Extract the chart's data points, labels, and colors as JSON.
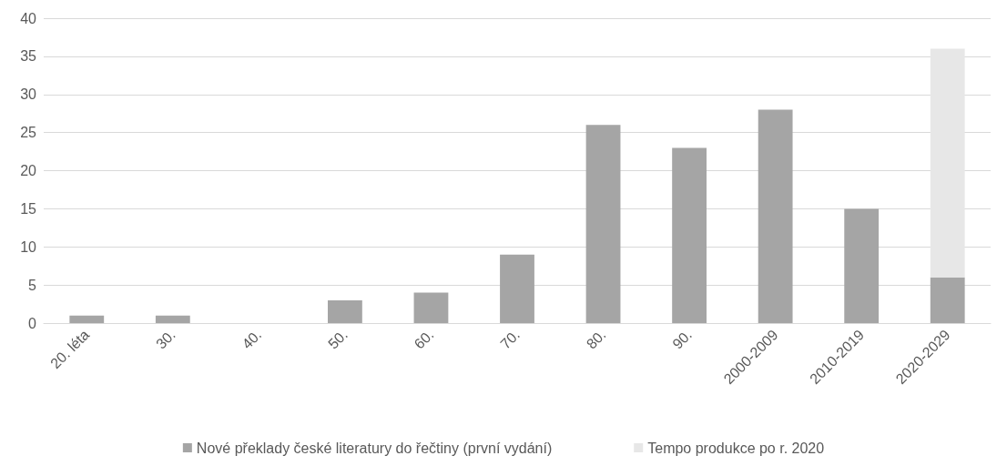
{
  "chart_data": {
    "type": "bar",
    "categories": [
      "20. léta",
      "30.",
      "40.",
      "50.",
      "60.",
      "70.",
      "80.",
      "90.",
      "2000-2009",
      "2010-2019",
      "2020-2029"
    ],
    "series": [
      {
        "name": "Nové překlady české literatury do řečtiny (první vydání)",
        "color": "#a5a5a5",
        "values": [
          1,
          1,
          0,
          3,
          4,
          9,
          26,
          23,
          28,
          15,
          6
        ]
      },
      {
        "name": "Tempo produkce po r. 2020",
        "color": "#e7e7e7",
        "values": [
          null,
          null,
          null,
          null,
          null,
          null,
          null,
          null,
          null,
          null,
          30
        ]
      }
    ],
    "stacked": true,
    "ylim": [
      0,
      40
    ],
    "yticks": [
      0,
      5,
      10,
      15,
      20,
      25,
      30,
      35,
      40
    ],
    "grid": "y",
    "legend": "bottom"
  }
}
